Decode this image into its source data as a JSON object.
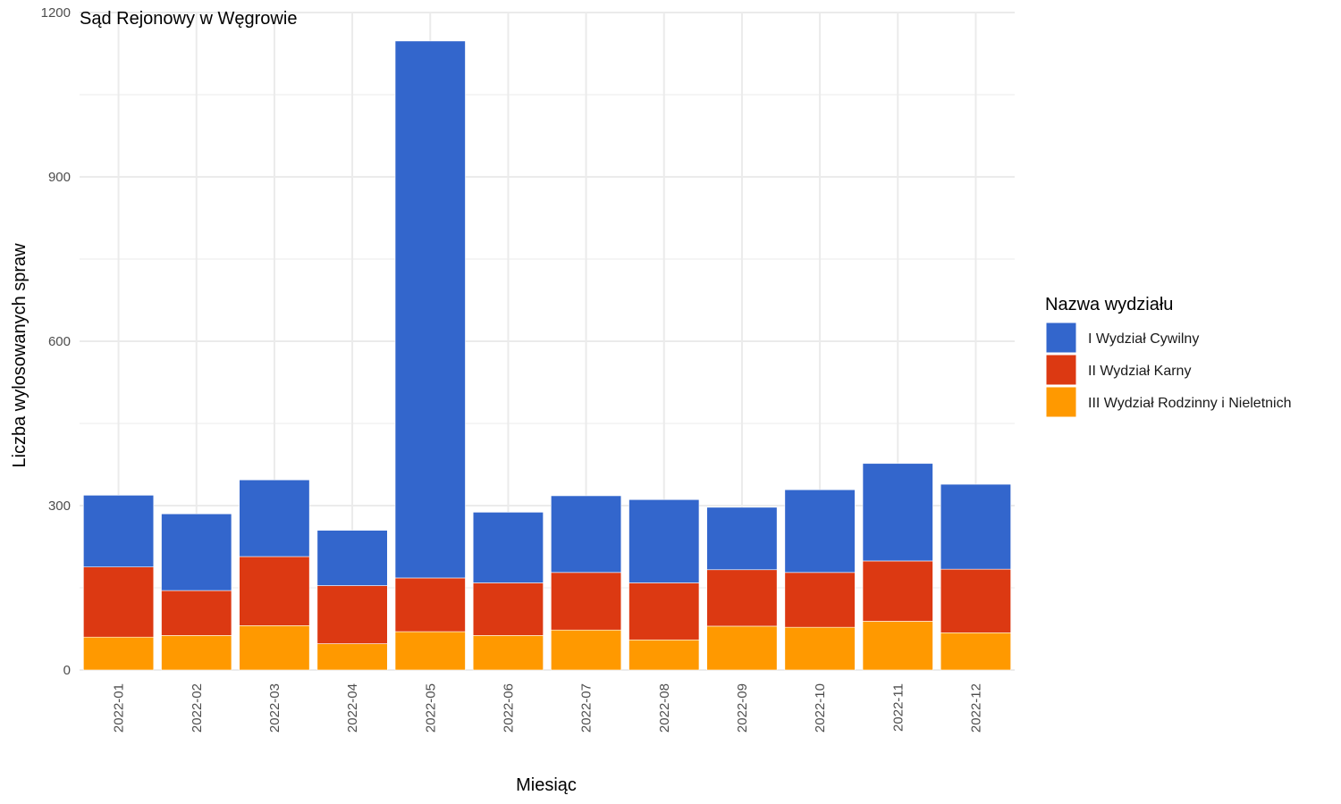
{
  "chart_data": {
    "type": "bar",
    "stacked": true,
    "title": "Sąd Rejonowy w Węgrowie",
    "xlabel": "Miesiąc",
    "ylabel": "Liczba wylosowanych spraw",
    "ylim": [
      0,
      1200
    ],
    "y_ticks": [
      "0",
      "300",
      "600",
      "900",
      "1200"
    ],
    "y_tick_values": [
      0,
      300,
      600,
      900,
      1200
    ],
    "grid": true,
    "legend_position": "right",
    "legend_title": "Nazwa wydziału",
    "categories": [
      "2022-01",
      "2022-02",
      "2022-03",
      "2022-04",
      "2022-05",
      "2022-06",
      "2022-07",
      "2022-08",
      "2022-09",
      "2022-10",
      "2022-11",
      "2022-12"
    ],
    "series": [
      {
        "name": "III Wydział Rodzinny i Nieletnich",
        "color": "#FF9900",
        "values": [
          60,
          63,
          81,
          48,
          70,
          63,
          73,
          55,
          80,
          78,
          89,
          68
        ]
      },
      {
        "name": "II Wydział Karny",
        "color": "#DC3912",
        "values": [
          128,
          82,
          126,
          106,
          98,
          96,
          105,
          104,
          103,
          100,
          110,
          116
        ]
      },
      {
        "name": "I Wydział Cywilny",
        "color": "#3366CC",
        "values": [
          131,
          140,
          140,
          101,
          980,
          129,
          140,
          152,
          114,
          151,
          178,
          155
        ]
      }
    ],
    "legend_order": [
      "I Wydział Cywilny",
      "II Wydział Karny",
      "III Wydział Rodzinny i Nieletnich"
    ]
  }
}
